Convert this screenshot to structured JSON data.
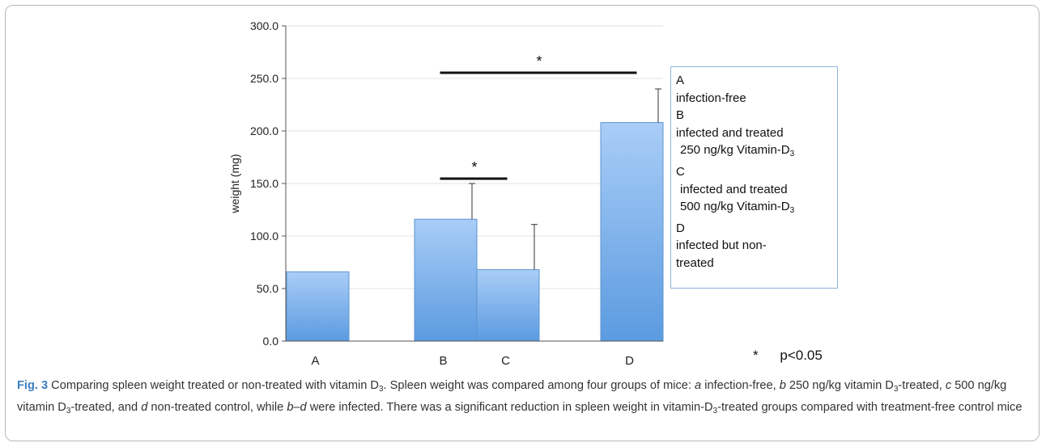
{
  "chart_data": {
    "type": "bar",
    "categories": [
      "A",
      "B",
      "C",
      "D"
    ],
    "values": [
      66,
      116,
      68,
      208
    ],
    "error_bars": [
      null,
      34,
      43,
      32
    ],
    "ylabel": "weight  (mg)",
    "ylim": [
      0,
      300
    ],
    "yticks": [
      "0.0",
      "50.0",
      "100.0",
      "150.0",
      "200.0",
      "250.0",
      "300.0"
    ],
    "grid": true,
    "significance": [
      {
        "from": "B",
        "to": "C",
        "label": "*"
      },
      {
        "from": "B",
        "to": "D",
        "label": "*"
      }
    ],
    "bar_color_top": "#a9cdf7",
    "bar_color_bottom": "#5b9be0"
  },
  "legend": {
    "lines": [
      {
        "text": "A",
        "sub": "",
        "indent": false
      },
      {
        "text": "infection-free",
        "sub": "",
        "indent": false
      },
      {
        "text": "B",
        "sub": "",
        "indent": false
      },
      {
        "text": "infected and treated",
        "sub": "",
        "indent": false
      },
      {
        "text": "250 ng/kg Vitamin-D",
        "sub": "3",
        "indent": true
      },
      {
        "text": "C",
        "sub": "",
        "indent": false
      },
      {
        "text": "infected and treated",
        "sub": "",
        "indent": true
      },
      {
        "text": "500 ng/kg Vitamin-D",
        "sub": "3",
        "indent": true
      },
      {
        "text": "D",
        "sub": "",
        "indent": false
      },
      {
        "text": "infected but non-",
        "sub": "",
        "indent": false
      },
      {
        "text": "treated",
        "sub": "",
        "indent": false
      }
    ]
  },
  "significance_note": {
    "star": "*",
    "text": "p<0.05"
  },
  "caption": {
    "label": "Fig. 3",
    "parts": [
      {
        "t": " Comparing spleen weight treated or non-treated with vitamin D",
        "s": ""
      },
      {
        "t": "3",
        "s": "sub"
      },
      {
        "t": ". Spleen weight was compared among four groups of mice: ",
        "s": ""
      },
      {
        "t": "a",
        "s": "i"
      },
      {
        "t": " infection-free, ",
        "s": ""
      },
      {
        "t": "b",
        "s": "i"
      },
      {
        "t": " 250 ng/kg vitamin D",
        "s": ""
      },
      {
        "t": "3",
        "s": "sub"
      },
      {
        "t": "-treated, ",
        "s": ""
      },
      {
        "t": "c",
        "s": "i"
      },
      {
        "t": " 500 ng/kg vitamin D",
        "s": ""
      },
      {
        "t": "3",
        "s": "sub"
      },
      {
        "t": "-treated, and ",
        "s": ""
      },
      {
        "t": "d",
        "s": "i"
      },
      {
        "t": " non-treated control, while ",
        "s": ""
      },
      {
        "t": "b–d",
        "s": "i"
      },
      {
        "t": " were infected. There was a significant reduction in spleen weight in vitamin-D",
        "s": ""
      },
      {
        "t": "3",
        "s": "sub"
      },
      {
        "t": "-treated groups compared with treatment-free control mice",
        "s": ""
      }
    ]
  }
}
